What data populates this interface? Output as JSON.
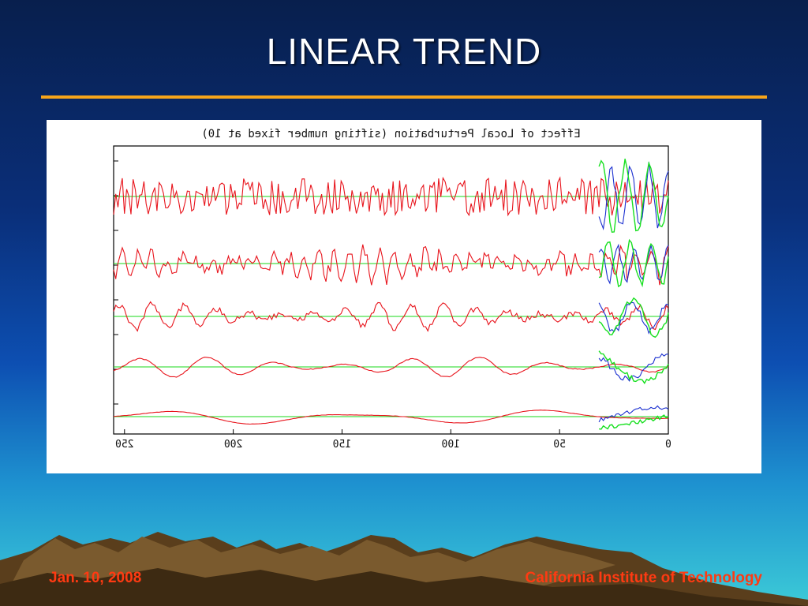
{
  "slide": {
    "title": "LINEAR TREND",
    "footer_left": "Jan. 10, 2008",
    "footer_right": "California Institute of Technology"
  },
  "colors": {
    "title": "#ffffff",
    "rule": "#f7a51a",
    "footer": "#ff3a12",
    "original": "#e8141c",
    "perturbed_a": "#1a2fd0",
    "perturbed_b": "#18e020",
    "baseline": "#18d818"
  },
  "chart_data": {
    "type": "line",
    "title": "Effect of Local Perturbation (sifting number fixed at 10)",
    "title_rendering": "mirrored",
    "x_axis": "reversed",
    "xlim": [
      0,
      255
    ],
    "xticks": [
      "0",
      "50",
      "100",
      "150",
      "200",
      "250"
    ],
    "xtick_values": [
      0,
      50,
      100,
      150,
      200,
      250
    ],
    "grid": false,
    "perturbation_region": [
      0,
      30
    ],
    "components": [
      {
        "index": 1,
        "baseline_value": 0,
        "char": "high-frequency, irregular"
      },
      {
        "index": 2,
        "baseline_value": 0,
        "char": "high-frequency oscillation"
      },
      {
        "index": 3,
        "baseline_value": 0,
        "char": "mid-frequency oscillation"
      },
      {
        "index": 4,
        "baseline_value": 0,
        "char": "low-frequency oscillation"
      },
      {
        "index": 5,
        "baseline_value": 0,
        "char": "slow trend-like oscillation"
      }
    ]
  }
}
